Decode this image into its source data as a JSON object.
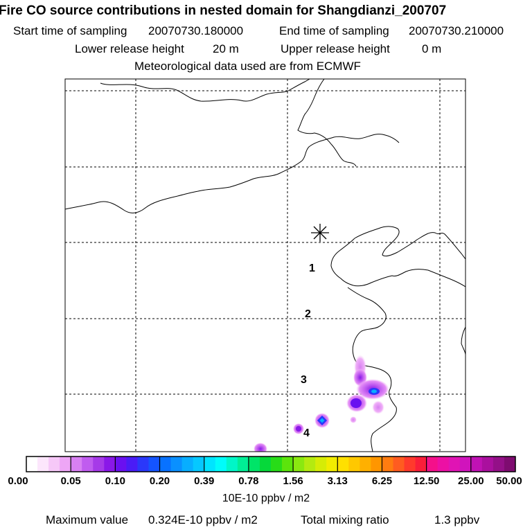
{
  "title": "Fire CO source contributions in nested domain for Shangdianzi_200707",
  "sampling": {
    "start_label": "Start time of sampling",
    "start_value": "20070730.180000",
    "end_label": "End time of sampling",
    "end_value": "20070730.210000"
  },
  "release": {
    "lower_label": "Lower release height",
    "lower_value": "20 m",
    "upper_label": "Upper release height",
    "upper_value": "0 m"
  },
  "meteo_note": "Meteorological data used are from ECMWF",
  "map": {
    "receptor_marker": "asterisk-icon",
    "track_labels": [
      "1",
      "2",
      "3",
      "4"
    ]
  },
  "colorbar": {
    "labels": [
      "0.00",
      "0.05",
      "0.10",
      "0.20",
      "0.39",
      "0.78",
      "1.56",
      "3.13",
      "6.25",
      "12.50",
      "25.00",
      "50.00"
    ],
    "colors": [
      "#ffffff",
      "#fce6fc",
      "#f6c8f8",
      "#eea6f6",
      "#d880f2",
      "#c05cef",
      "#a63ae8",
      "#8a18e8",
      "#6a10f0",
      "#4a1cf6",
      "#2a38fa",
      "#1454ff",
      "#0872ff",
      "#0a90ff",
      "#08aeff",
      "#06c8ff",
      "#00e4ff",
      "#00fcfa",
      "#00f6c8",
      "#00ee96",
      "#00e468",
      "#06d83a",
      "#28dc18",
      "#5ce40c",
      "#8ae810",
      "#b4ea10",
      "#d6ec06",
      "#f2ec00",
      "#ffe000",
      "#ffc800",
      "#ffb000",
      "#ff9600",
      "#ff7c10",
      "#ff5c20",
      "#ff3a2c",
      "#fa1e3a",
      "#f4108a",
      "#ec10a4",
      "#e014b4",
      "#d014bc",
      "#c012b4",
      "#aa109e",
      "#941088",
      "#7e0c70"
    ],
    "unit": "10E-10 ppbv / m2"
  },
  "footer": {
    "max_label": "Maximum value",
    "max_value": "0.324E-10 ppbv / m2",
    "total_label": "Total mixing ratio",
    "total_value": "1.3 ppbv"
  }
}
